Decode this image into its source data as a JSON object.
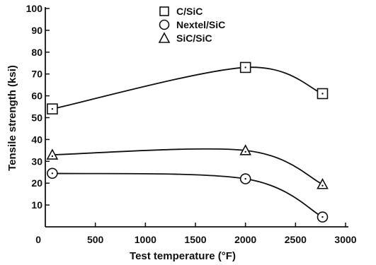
{
  "chart_data": {
    "type": "line",
    "title": "",
    "xlabel": "Test temperature (°F)",
    "ylabel": "Tensile strength (ksi)",
    "xlim": [
      0,
      3000
    ],
    "ylim": [
      0,
      100
    ],
    "xticks": [
      0,
      500,
      1000,
      1500,
      2000,
      2500,
      3000
    ],
    "yticks": [
      10,
      20,
      30,
      40,
      50,
      60,
      70,
      80,
      90,
      100
    ],
    "grid": false,
    "legend_position": "top-center",
    "series": [
      {
        "name": "C/SiC",
        "marker": "square",
        "x": [
          70,
          2000,
          2770
        ],
        "y": [
          54,
          73,
          61
        ]
      },
      {
        "name": "Nextel/SiC",
        "marker": "circle",
        "x": [
          70,
          2000,
          2770
        ],
        "y": [
          24.5,
          22,
          4.5
        ]
      },
      {
        "name": "SiC/SiC",
        "marker": "triangle",
        "x": [
          70,
          2000,
          2770
        ],
        "y": [
          33,
          35,
          19.5
        ]
      }
    ]
  }
}
